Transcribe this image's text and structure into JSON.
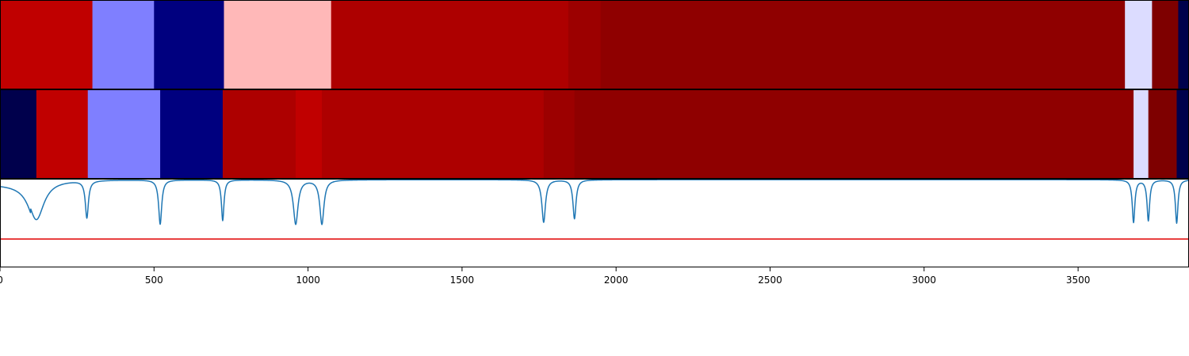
{
  "chart_data": [
    {
      "type": "heatmap",
      "xlim": [
        0,
        3860
      ],
      "segments": [
        {
          "start": 0,
          "end": 300,
          "color": "#c00000"
        },
        {
          "start": 300,
          "end": 500,
          "color": "#7f7fff"
        },
        {
          "start": 500,
          "end": 727,
          "color": "#00007f"
        },
        {
          "start": 727,
          "end": 1075,
          "color": "#ffb8b8"
        },
        {
          "start": 1075,
          "end": 1845,
          "color": "#ad0000"
        },
        {
          "start": 1845,
          "end": 1950,
          "color": "#9c0000"
        },
        {
          "start": 1950,
          "end": 3652,
          "color": "#8f0000"
        },
        {
          "start": 3652,
          "end": 3740,
          "color": "#dcdcff"
        },
        {
          "start": 3740,
          "end": 3825,
          "color": "#7e0000"
        },
        {
          "start": 3825,
          "end": 3860,
          "color": "#00004c"
        }
      ]
    },
    {
      "type": "heatmap",
      "xlim": [
        0,
        3860
      ],
      "segments": [
        {
          "start": 0,
          "end": 118,
          "color": "#00004c"
        },
        {
          "start": 118,
          "end": 285,
          "color": "#c00000"
        },
        {
          "start": 285,
          "end": 520,
          "color": "#7f7fff"
        },
        {
          "start": 520,
          "end": 723,
          "color": "#00007f"
        },
        {
          "start": 723,
          "end": 960,
          "color": "#ad0000"
        },
        {
          "start": 960,
          "end": 1045,
          "color": "#c00000"
        },
        {
          "start": 1045,
          "end": 1765,
          "color": "#ad0000"
        },
        {
          "start": 1765,
          "end": 1865,
          "color": "#9c0000"
        },
        {
          "start": 1865,
          "end": 3680,
          "color": "#8f0000"
        },
        {
          "start": 3680,
          "end": 3728,
          "color": "#dcdcff"
        },
        {
          "start": 3728,
          "end": 3820,
          "color": "#7e0000"
        },
        {
          "start": 3820,
          "end": 3860,
          "color": "#00004c"
        }
      ]
    },
    {
      "type": "line",
      "xlim": [
        0,
        3860
      ],
      "ylim": [
        0,
        1.0
      ],
      "line_color": "#1f77b4",
      "threshold": 0.32,
      "threshold_color": "#e00000",
      "xticks": [
        {
          "value": 0,
          "label": "0"
        },
        {
          "value": 500,
          "label": "500"
        },
        {
          "value": 1000,
          "label": "1000"
        },
        {
          "value": 1500,
          "label": "1500"
        },
        {
          "value": 2000,
          "label": "2000"
        },
        {
          "value": 2500,
          "label": "2500"
        },
        {
          "value": 3000,
          "label": "3000"
        },
        {
          "value": 3500,
          "label": "3500"
        }
      ],
      "baseline": 0.99,
      "start_level": 0.94,
      "dips": [
        {
          "center": 118,
          "width": 30,
          "depth": 0.45
        },
        {
          "center": 282,
          "width": 6,
          "depth": 0.42
        },
        {
          "center": 520,
          "width": 6,
          "depth": 0.5
        },
        {
          "center": 723,
          "width": 5,
          "depth": 0.46
        },
        {
          "center": 960,
          "width": 9,
          "depth": 0.5
        },
        {
          "center": 1045,
          "width": 8,
          "depth": 0.5
        },
        {
          "center": 1765,
          "width": 7,
          "depth": 0.48
        },
        {
          "center": 1865,
          "width": 6,
          "depth": 0.44
        },
        {
          "center": 3680,
          "width": 5,
          "depth": 0.48
        },
        {
          "center": 3728,
          "width": 5,
          "depth": 0.46
        },
        {
          "center": 3820,
          "width": 5,
          "depth": 0.49
        }
      ]
    }
  ]
}
